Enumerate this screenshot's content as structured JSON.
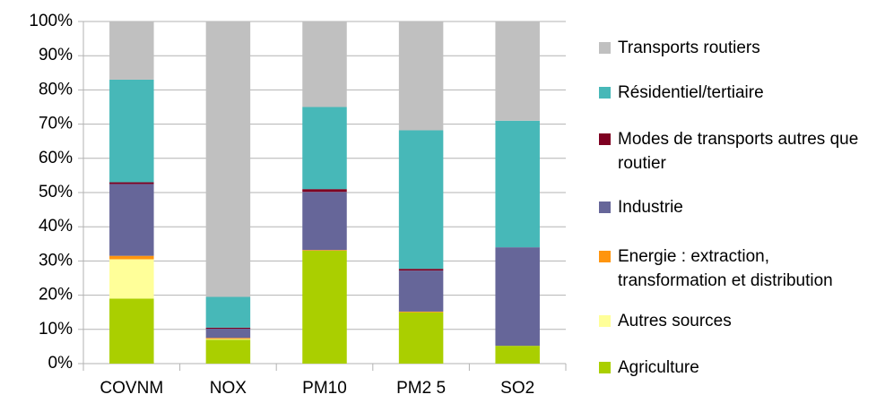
{
  "chart_data": {
    "type": "stacked_bar",
    "categories": [
      "COVNM",
      "NOX",
      "PM10",
      "PM2 5",
      "SO2"
    ],
    "series": [
      {
        "name": "Agriculture",
        "color": "#aacf00",
        "values": [
          19,
          7,
          33,
          15,
          5.2
        ]
      },
      {
        "name": "Autres sources",
        "color": "#ffff99",
        "values": [
          11.5,
          0.2,
          0,
          0,
          0
        ]
      },
      {
        "name": "Energie : extraction, transformation et distribution",
        "color": "#ff950e",
        "values": [
          1,
          0.3,
          0.2,
          0.2,
          0
        ]
      },
      {
        "name": "Industrie",
        "color": "#666699",
        "values": [
          21,
          2.7,
          17,
          12,
          28.8
        ]
      },
      {
        "name": "Modes de transports autres que routier",
        "color": "#7e0021",
        "values": [
          0.5,
          0.3,
          0.8,
          0.5,
          0
        ]
      },
      {
        "name": "Résidentiel/tertiaire",
        "color": "#47b8b8",
        "values": [
          30,
          9,
          24,
          40.5,
          37
        ]
      },
      {
        "name": "Transports routiers",
        "color": "#c0c0c0",
        "values": [
          17,
          80.5,
          25,
          31.8,
          29
        ]
      }
    ],
    "ylim": [
      0,
      100
    ],
    "yticks": [
      {
        "value": 0,
        "label": "0%"
      },
      {
        "value": 10,
        "label": "10%"
      },
      {
        "value": 20,
        "label": "20%"
      },
      {
        "value": 30,
        "label": "30%"
      },
      {
        "value": 40,
        "label": "40%"
      },
      {
        "value": 50,
        "label": "50%"
      },
      {
        "value": 60,
        "label": "60%"
      },
      {
        "value": 70,
        "label": "70%"
      },
      {
        "value": 80,
        "label": "80%"
      },
      {
        "value": 90,
        "label": "90%"
      },
      {
        "value": 100,
        "label": "100%"
      }
    ],
    "grid": true,
    "legend": "right"
  }
}
